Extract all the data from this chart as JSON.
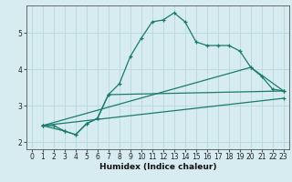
{
  "xlabel": "Humidex (Indice chaleur)",
  "background_color": "#d6ecf0",
  "grid_color": "#b8d8df",
  "line_color": "#1a7a6e",
  "xlim": [
    -0.5,
    23.5
  ],
  "ylim": [
    1.8,
    5.75
  ],
  "yticks": [
    2,
    3,
    4,
    5
  ],
  "xticks": [
    0,
    1,
    2,
    3,
    4,
    5,
    6,
    7,
    8,
    9,
    10,
    11,
    12,
    13,
    14,
    15,
    16,
    17,
    18,
    19,
    20,
    21,
    22,
    23
  ],
  "series": [
    {
      "x": [
        1,
        2,
        3,
        4,
        5,
        6,
        7,
        8,
        9,
        10,
        11,
        12,
        13,
        14,
        15,
        16,
        17,
        18,
        19,
        20,
        21,
        22,
        23
      ],
      "y": [
        2.45,
        2.45,
        2.3,
        2.2,
        2.5,
        2.65,
        3.3,
        3.6,
        4.35,
        4.85,
        5.3,
        5.35,
        5.55,
        5.3,
        4.75,
        4.65,
        4.65,
        4.65,
        4.5,
        4.05,
        3.8,
        3.45,
        3.4
      ]
    },
    {
      "x": [
        1,
        3,
        4,
        5,
        6,
        7,
        23
      ],
      "y": [
        2.45,
        2.3,
        2.2,
        2.5,
        2.65,
        3.3,
        3.4
      ]
    },
    {
      "x": [
        1,
        20,
        23
      ],
      "y": [
        2.45,
        4.05,
        3.4
      ]
    },
    {
      "x": [
        1,
        23
      ],
      "y": [
        2.45,
        3.2
      ]
    }
  ]
}
